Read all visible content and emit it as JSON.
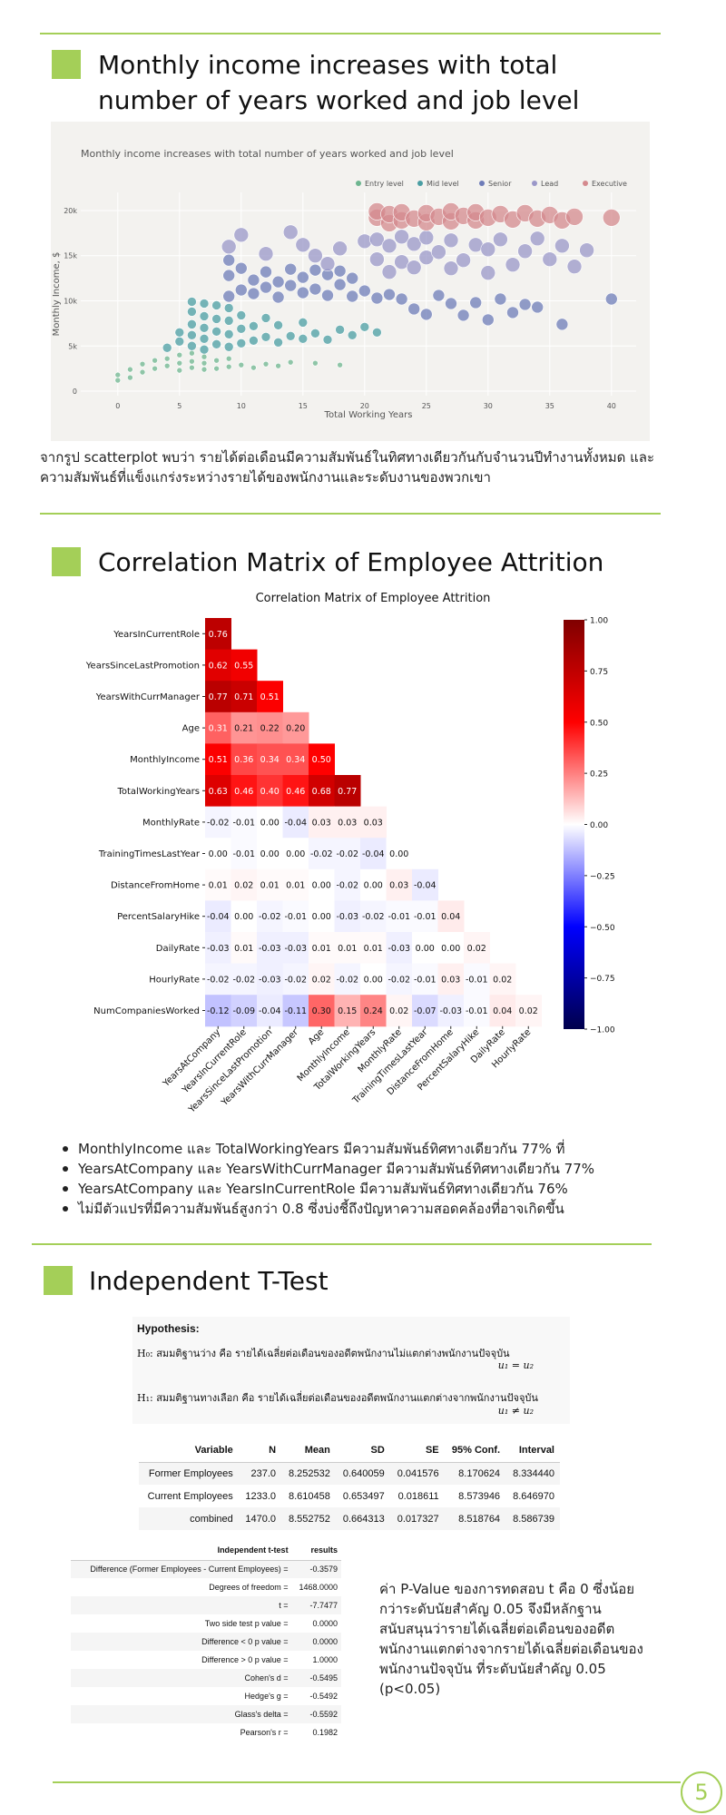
{
  "section1": {
    "title": "Monthly income increases with total number of years worked and job level",
    "paragraph": "จากรูป scatterplot พบว่า รายได้ต่อเดือนมีความสัมพันธ์ในทิศทางเดียวกันกับจำนวนปีทำงานทั้งหมด และความสัมพันธ์ที่แข็งแกร่งระหว่างรายได้ของพนักงานและระดับงานของพวกเขา"
  },
  "section2": {
    "title": "Correlation Matrix of Employee Attrition",
    "bullets": [
      "MonthlyIncome และ TotalWorkingYears มีความสัมพันธ์ทิศทางเดียวกัน 77% ที่",
      "YearsAtCompany และ YearsWithCurrManager มีความสัมพันธ์ทิศทางเดียวกัน 77%",
      "YearsAtCompany และ YearsInCurrentRole มีความสัมพันธ์ทิศทางเดียวกัน 76%",
      "ไม่มีตัวแปรที่มีความสัมพันธ์สูงกว่า 0.8 ซึ่งบ่งชี้ถึงปัญหาความสอดคล้องที่อาจเกิดขึ้น"
    ]
  },
  "section3": {
    "title": "Independent T-Test",
    "hypothesis": {
      "title": "Hypothesis:",
      "h0_text": "H₀: สมมติฐานว่าง คือ รายได้เฉลี่ยต่อเดือนของอดีตพนักงานไม่แตกต่างพนักงานปัจจุบัน",
      "h0_formula": "u₁ = u₂",
      "h1_text": "H₁: สมมติฐานทางเลือก คือ รายได้เฉลี่ยต่อเดือนของอดีตพนักงานแตกต่างจากพนักงานปัจจุบัน",
      "h1_formula": "u₁ ≠ u₂"
    },
    "stats_table": {
      "headers": [
        "Variable",
        "N",
        "Mean",
        "SD",
        "SE",
        "95% Conf.",
        "Interval"
      ],
      "rows": [
        [
          "Former Employees",
          "237.0",
          "8.252532",
          "0.640059",
          "0.041576",
          "8.170624",
          "8.334440"
        ],
        [
          "Current Employees",
          "1233.0",
          "8.610458",
          "0.653497",
          "0.018611",
          "8.573946",
          "8.646970"
        ],
        [
          "combined",
          "1470.0",
          "8.552752",
          "0.664313",
          "0.017327",
          "8.518764",
          "8.586739"
        ]
      ]
    },
    "ttest_table": {
      "headers": [
        "Independent t-test",
        "results"
      ],
      "rows": [
        [
          "Difference (Former Employees - Current Employees) =",
          "-0.3579"
        ],
        [
          "Degrees of freedom =",
          "1468.0000"
        ],
        [
          "t =",
          "-7.7477"
        ],
        [
          "Two side test p value =",
          "0.0000"
        ],
        [
          "Difference < 0 p value =",
          "0.0000"
        ],
        [
          "Difference > 0 p value =",
          "1.0000"
        ],
        [
          "Cohen's d =",
          "-0.5495"
        ],
        [
          "Hedge's g =",
          "-0.5492"
        ],
        [
          "Glass's delta =",
          "-0.5592"
        ],
        [
          "Pearson's r =",
          "0.1982"
        ]
      ]
    },
    "note": "ค่า P-Value ของการทดสอบ t คือ 0 ซึ่งน้อยกว่าระดับนัยสำคัญ 0.05 จึงมีหลักฐานสนับสนุนว่ารายได้เฉลี่ยต่อเดือนของอดีตพนักงานแตกต่างจากรายได้เฉลี่ยต่อเดือนของพนักงานปัจจุบัน ที่ระดับนัยสำคัญ 0.05 (p<0.05)"
  },
  "page_number": "5",
  "colors": {
    "accent": "#a4cf58"
  },
  "chart_data": [
    {
      "type": "scatter",
      "title": "Monthly income increases with total number of years worked and job level",
      "xlabel": "Total Working Years",
      "ylabel": "Monthly Income, $",
      "xlim": [
        -3,
        42
      ],
      "ylim": [
        -500,
        21000
      ],
      "xticks": [
        "0",
        "5",
        "10",
        "15",
        "20",
        "25",
        "30",
        "35",
        "40"
      ],
      "yticks": [
        "0",
        "5k",
        "10k",
        "15k",
        "20k"
      ],
      "legend_position": "top-right",
      "series": [
        {
          "name": "Entry level",
          "color": "#6db58f",
          "points": [
            [
              0,
              1200
            ],
            [
              0,
              1800
            ],
            [
              1,
              1500
            ],
            [
              1,
              2400
            ],
            [
              2,
              2100
            ],
            [
              2,
              3000
            ],
            [
              3,
              2500
            ],
            [
              3,
              3400
            ],
            [
              4,
              2800
            ],
            [
              4,
              3600
            ],
            [
              5,
              2300
            ],
            [
              5,
              3100
            ],
            [
              5,
              4000
            ],
            [
              6,
              2600
            ],
            [
              6,
              3300
            ],
            [
              6,
              4200
            ],
            [
              7,
              2400
            ],
            [
              7,
              3100
            ],
            [
              7,
              3800
            ],
            [
              8,
              2500
            ],
            [
              8,
              3400
            ],
            [
              9,
              2700
            ],
            [
              9,
              3600
            ],
            [
              10,
              2900
            ],
            [
              11,
              2600
            ],
            [
              12,
              3000
            ],
            [
              13,
              2800
            ],
            [
              14,
              3200
            ],
            [
              16,
              3100
            ],
            [
              18,
              2900
            ]
          ]
        },
        {
          "name": "Mid level",
          "color": "#4a9ea3",
          "points": [
            [
              4,
              4800
            ],
            [
              5,
              5500
            ],
            [
              5,
              6500
            ],
            [
              6,
              5000
            ],
            [
              6,
              6200
            ],
            [
              6,
              7400
            ],
            [
              6,
              8800
            ],
            [
              6,
              9900
            ],
            [
              7,
              4600
            ],
            [
              7,
              5800
            ],
            [
              7,
              7000
            ],
            [
              7,
              8300
            ],
            [
              7,
              9700
            ],
            [
              8,
              5200
            ],
            [
              8,
              6600
            ],
            [
              8,
              8000
            ],
            [
              8,
              9500
            ],
            [
              9,
              4900
            ],
            [
              9,
              6300
            ],
            [
              9,
              7800
            ],
            [
              9,
              9200
            ],
            [
              10,
              5300
            ],
            [
              10,
              6900
            ],
            [
              10,
              8400
            ],
            [
              11,
              5600
            ],
            [
              11,
              7200
            ],
            [
              12,
              6000
            ],
            [
              12,
              8100
            ],
            [
              13,
              5400
            ],
            [
              13,
              7300
            ],
            [
              14,
              6100
            ],
            [
              15,
              5800
            ],
            [
              15,
              7600
            ],
            [
              16,
              6400
            ],
            [
              17,
              5700
            ],
            [
              18,
              6800
            ],
            [
              19,
              6200
            ],
            [
              20,
              7100
            ],
            [
              21,
              6500
            ]
          ]
        },
        {
          "name": "Senior",
          "color": "#6e7cb8",
          "points": [
            [
              9,
              10500
            ],
            [
              9,
              12800
            ],
            [
              9,
              14500
            ],
            [
              10,
              11200
            ],
            [
              10,
              13600
            ],
            [
              11,
              10800
            ],
            [
              11,
              12300
            ],
            [
              12,
              11500
            ],
            [
              12,
              13200
            ],
            [
              13,
              10400
            ],
            [
              13,
              12100
            ],
            [
              14,
              11700
            ],
            [
              14,
              13500
            ],
            [
              15,
              10900
            ],
            [
              15,
              12600
            ],
            [
              16,
              11300
            ],
            [
              16,
              13400
            ],
            [
              17,
              10600
            ],
            [
              17,
              12900
            ],
            [
              18,
              11800
            ],
            [
              18,
              13300
            ],
            [
              19,
              10500
            ],
            [
              19,
              12500
            ],
            [
              20,
              11100
            ],
            [
              21,
              10300
            ],
            [
              22,
              10700
            ],
            [
              23,
              10200
            ],
            [
              24,
              9100
            ],
            [
              25,
              8500
            ],
            [
              26,
              10600
            ],
            [
              27,
              9700
            ],
            [
              28,
              8400
            ],
            [
              29,
              9800
            ],
            [
              30,
              7900
            ],
            [
              31,
              10200
            ],
            [
              32,
              8700
            ],
            [
              33,
              9600
            ],
            [
              34,
              9300
            ],
            [
              36,
              7400
            ],
            [
              40,
              10200
            ]
          ]
        },
        {
          "name": "Lead",
          "color": "#9a97c8",
          "points": [
            [
              9,
              16000
            ],
            [
              10,
              17300
            ],
            [
              12,
              15200
            ],
            [
              14,
              17600
            ],
            [
              15,
              16200
            ],
            [
              16,
              15000
            ],
            [
              17,
              14100
            ],
            [
              18,
              15800
            ],
            [
              20,
              16600
            ],
            [
              21,
              14600
            ],
            [
              21,
              16800
            ],
            [
              22,
              13200
            ],
            [
              22,
              16100
            ],
            [
              23,
              14300
            ],
            [
              23,
              17100
            ],
            [
              24,
              13700
            ],
            [
              24,
              16300
            ],
            [
              25,
              14800
            ],
            [
              25,
              17000
            ],
            [
              26,
              15400
            ],
            [
              27,
              13600
            ],
            [
              27,
              16700
            ],
            [
              28,
              14500
            ],
            [
              29,
              16200
            ],
            [
              30,
              13100
            ],
            [
              30,
              15700
            ],
            [
              31,
              16800
            ],
            [
              32,
              14000
            ],
            [
              33,
              15500
            ],
            [
              34,
              16900
            ],
            [
              35,
              14600
            ],
            [
              36,
              16100
            ],
            [
              37,
              13800
            ],
            [
              38,
              15600
            ]
          ]
        },
        {
          "name": "Executive",
          "color": "#d48a8e",
          "points": [
            [
              21,
              19200
            ],
            [
              21,
              19900
            ],
            [
              22,
              18600
            ],
            [
              22,
              19600
            ],
            [
              23,
              18900
            ],
            [
              23,
              19800
            ],
            [
              24,
              19100
            ],
            [
              25,
              18700
            ],
            [
              25,
              19700
            ],
            [
              26,
              19300
            ],
            [
              27,
              18800
            ],
            [
              27,
              19900
            ],
            [
              28,
              19400
            ],
            [
              29,
              18900
            ],
            [
              29,
              19800
            ],
            [
              30,
              19200
            ],
            [
              31,
              19600
            ],
            [
              32,
              19000
            ],
            [
              33,
              19700
            ],
            [
              34,
              19100
            ],
            [
              35,
              19500
            ],
            [
              36,
              18900
            ],
            [
              37,
              19300
            ],
            [
              40,
              19200
            ]
          ]
        }
      ]
    },
    {
      "type": "heatmap",
      "title": "Correlation Matrix of Employee Attrition",
      "row_labels": [
        "YearsInCurrentRole",
        "YearsSinceLastPromotion",
        "YearsWithCurrManager",
        "Age",
        "MonthlyIncome",
        "TotalWorkingYears",
        "MonthlyRate",
        "TrainingTimesLastYear",
        "DistanceFromHome",
        "PercentSalaryHike",
        "DailyRate",
        "HourlyRate",
        "NumCompaniesWorked"
      ],
      "col_labels": [
        "YearsAtCompany",
        "YearsInCurrentRole",
        "YearsSinceLastPromotion",
        "YearsWithCurrManager",
        "Age",
        "MonthlyIncome",
        "TotalWorkingYears",
        "MonthlyRate",
        "TrainingTimesLastYear",
        "DistanceFromHome",
        "PercentSalaryHike",
        "DailyRate",
        "HourlyRate"
      ],
      "values": [
        [
          0.76
        ],
        [
          0.62,
          0.55
        ],
        [
          0.77,
          0.71,
          0.51
        ],
        [
          0.31,
          0.21,
          0.22,
          0.2
        ],
        [
          0.51,
          0.36,
          0.34,
          0.34,
          0.5
        ],
        [
          0.63,
          0.46,
          0.4,
          0.46,
          0.68,
          0.77
        ],
        [
          -0.02,
          -0.01,
          0.0,
          -0.04,
          0.03,
          0.03,
          0.03
        ],
        [
          0.0,
          -0.01,
          -0.0,
          -0.0,
          -0.02,
          -0.02,
          -0.04,
          0.0
        ],
        [
          0.01,
          0.02,
          0.01,
          0.01,
          -0.0,
          -0.02,
          0.0,
          0.03,
          -0.04
        ],
        [
          -0.04,
          -0.0,
          -0.02,
          -0.01,
          0.0,
          -0.03,
          -0.02,
          -0.01,
          -0.01,
          0.04
        ],
        [
          -0.03,
          0.01,
          -0.03,
          -0.03,
          0.01,
          0.01,
          0.01,
          -0.03,
          0.0,
          -0.0,
          0.02
        ],
        [
          -0.02,
          -0.02,
          -0.03,
          -0.02,
          0.02,
          -0.02,
          -0.0,
          -0.02,
          -0.01,
          0.03,
          -0.01,
          0.02
        ],
        [
          -0.12,
          -0.09,
          -0.04,
          -0.11,
          0.3,
          0.15,
          0.24,
          0.02,
          -0.07,
          -0.03,
          -0.01,
          0.04,
          0.02
        ]
      ],
      "colorbar": {
        "min": -1.0,
        "max": 1.0,
        "ticks": [
          "1.00",
          "0.75",
          "0.50",
          "0.25",
          "0.00",
          "−0.25",
          "−0.50",
          "−0.75",
          "−1.00"
        ]
      },
      "colormap": "seismic"
    }
  ]
}
